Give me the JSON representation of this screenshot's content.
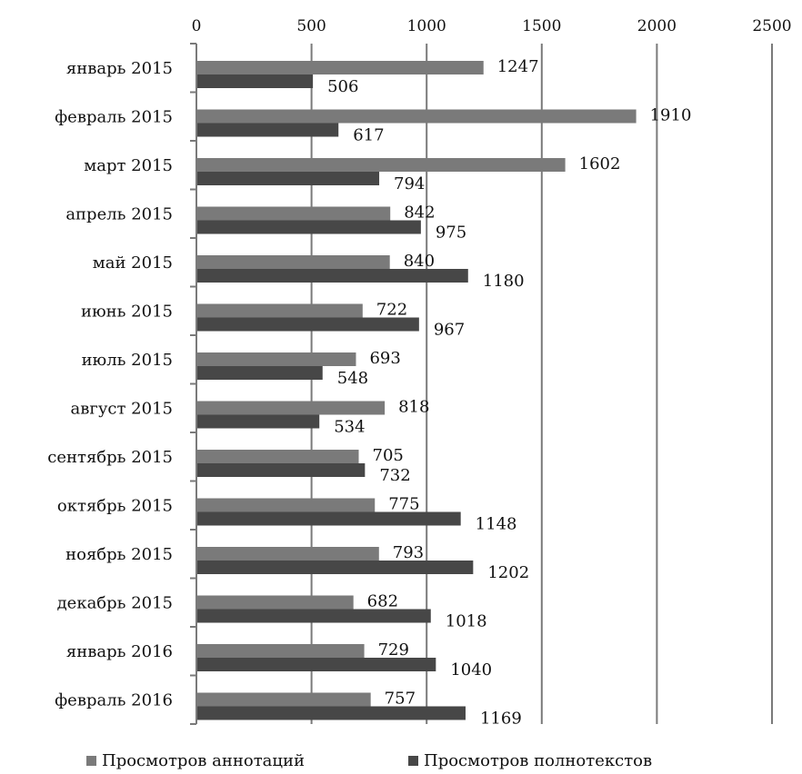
{
  "chart_data": {
    "type": "bar",
    "orientation": "horizontal",
    "grid": true,
    "legend_position": "bottom",
    "xlim": [
      0,
      2500
    ],
    "x_ticks": [
      "0",
      "500",
      "1000",
      "1500",
      "2000",
      "2500"
    ],
    "categories": [
      "январь 2015",
      "февраль 2015",
      "март 2015",
      "апрель 2015",
      "май 2015",
      "июнь 2015",
      "июль 2015",
      "август 2015",
      "сентябрь 2015",
      "октябрь 2015",
      "ноябрь 2015",
      "декабрь 2015",
      "январь 2016",
      "февраль 2016"
    ],
    "series": [
      {
        "name": "Просмотров аннотаций",
        "color": "#7a7a7a",
        "values": [
          1247,
          1910,
          1602,
          842,
          840,
          722,
          693,
          818,
          705,
          775,
          793,
          682,
          729,
          757
        ]
      },
      {
        "name": "Просмотров полнотекстов",
        "color": "#474747",
        "values": [
          506,
          617,
          794,
          975,
          1180,
          967,
          548,
          534,
          732,
          1148,
          1202,
          1018,
          1040,
          1169
        ]
      }
    ]
  }
}
